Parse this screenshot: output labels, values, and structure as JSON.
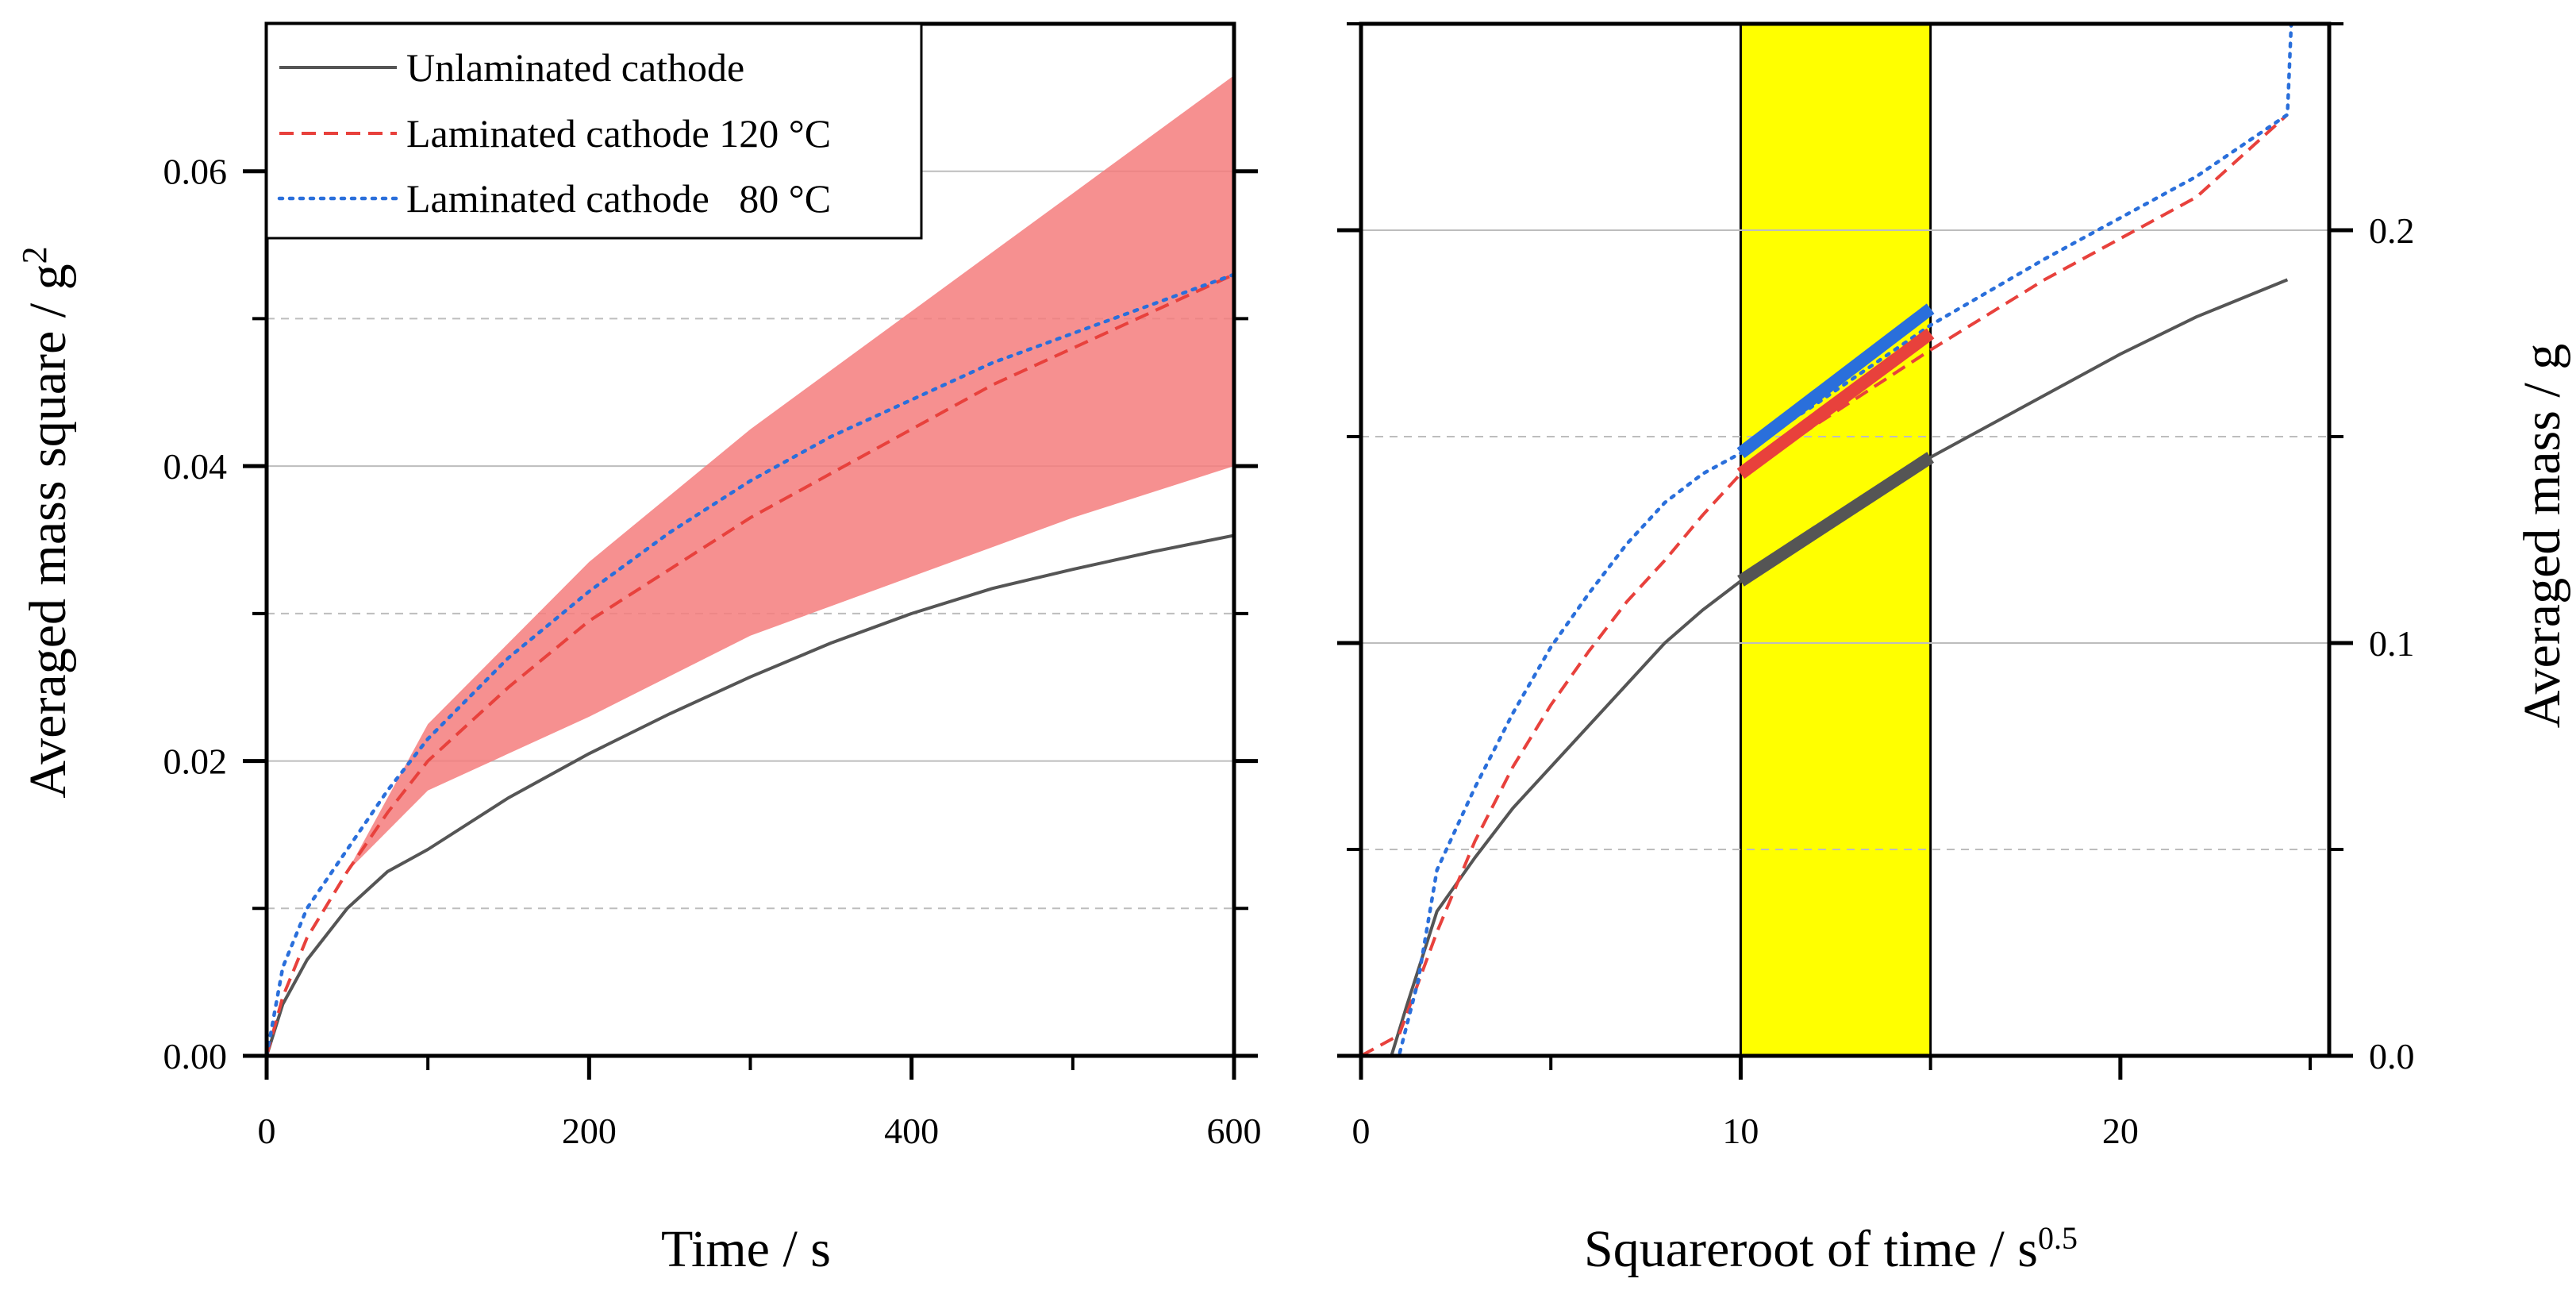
{
  "chart_data": [
    {
      "type": "line",
      "panel": "left",
      "xlabel": "Time / s",
      "ylabel": "Averaged mass square / g",
      "ylabel_superscript": "2",
      "xlim": [
        0,
        600
      ],
      "ylim": [
        0,
        0.07
      ],
      "x_ticks": [
        0,
        200,
        400,
        600
      ],
      "x_tick_labels": [
        "0",
        "200",
        "400",
        "600"
      ],
      "y_ticks": [
        0,
        0.02,
        0.04,
        0.06
      ],
      "y_tick_labels": [
        "0.00",
        "0.02",
        "0.04",
        "0.06"
      ],
      "grid_major_y": [
        0.02,
        0.04,
        0.06
      ],
      "grid_minor_y": [
        0.01,
        0.03,
        0.05
      ],
      "legend": {
        "placement": "top-left",
        "entries": [
          {
            "label": "Unlaminated cathode",
            "color": "#555555",
            "style": "solid"
          },
          {
            "label": "Laminated cathode 120 °C",
            "color": "#e8413c",
            "style": "dashed"
          },
          {
            "label": "Laminated cathode   80 °C",
            "color": "#2a6fdb",
            "style": "dotted"
          }
        ]
      },
      "band": {
        "name": "Laminated cathode 120 °C spread",
        "color": "#f47c7c",
        "x": [
          50,
          100,
          200,
          300,
          400,
          500,
          600
        ],
        "upper": [
          0.0125,
          0.0225,
          0.0335,
          0.0425,
          0.0505,
          0.0585,
          0.0665
        ],
        "lower": [
          0.0125,
          0.018,
          0.023,
          0.0285,
          0.0325,
          0.0365,
          0.04
        ]
      },
      "series": [
        {
          "name": "Unlaminated cathode",
          "color": "#555555",
          "style": "solid",
          "x": [
            0,
            10,
            25,
            50,
            75,
            100,
            150,
            200,
            250,
            300,
            350,
            400,
            450,
            500,
            550,
            600
          ],
          "y": [
            0,
            0.0035,
            0.0065,
            0.01,
            0.0125,
            0.014,
            0.0175,
            0.0205,
            0.0232,
            0.0257,
            0.028,
            0.03,
            0.0317,
            0.033,
            0.0342,
            0.0353
          ]
        },
        {
          "name": "Laminated cathode 120 °C",
          "color": "#e8413c",
          "style": "dashed",
          "x": [
            0,
            10,
            25,
            50,
            75,
            100,
            150,
            200,
            250,
            300,
            350,
            400,
            450,
            500,
            550,
            600
          ],
          "y": [
            0,
            0.004,
            0.008,
            0.0125,
            0.0165,
            0.02,
            0.025,
            0.0295,
            0.033,
            0.0365,
            0.0395,
            0.0425,
            0.0455,
            0.048,
            0.0505,
            0.053
          ]
        },
        {
          "name": "Laminated cathode   80 °C",
          "color": "#2a6fdb",
          "style": "dotted",
          "x": [
            0,
            10,
            25,
            50,
            75,
            100,
            150,
            200,
            250,
            300,
            350,
            400,
            450,
            500,
            550,
            600
          ],
          "y": [
            0,
            0.006,
            0.01,
            0.014,
            0.018,
            0.0215,
            0.027,
            0.0315,
            0.0355,
            0.039,
            0.042,
            0.0445,
            0.047,
            0.049,
            0.051,
            0.053
          ]
        }
      ]
    },
    {
      "type": "line",
      "panel": "right",
      "xlabel": "Squareroot of time / s",
      "xlabel_superscript": "0.5",
      "ylabel": "Averaged mass / g",
      "xlim": [
        0,
        25.5
      ],
      "ylim": [
        0,
        0.25
      ],
      "x_ticks": [
        0,
        10,
        20
      ],
      "x_tick_labels": [
        "0",
        "10",
        "20"
      ],
      "y_ticks": [
        0,
        0.1,
        0.2
      ],
      "y_tick_labels": [
        "0.0",
        "0.1",
        "0.2"
      ],
      "grid_major_y": [
        0.1,
        0.2
      ],
      "grid_minor_y": [
        0.05,
        0.15,
        0.25
      ],
      "highlight_region": {
        "x_start": 10,
        "x_end": 15,
        "color": "#ffff00"
      },
      "series": [
        {
          "name": "Unlaminated cathode",
          "color": "#555555",
          "style": "solid",
          "x": [
            0,
            0.8,
            1.2,
            2,
            3,
            4,
            5,
            6,
            7,
            8,
            9,
            10,
            12,
            15,
            18,
            20,
            22,
            24.4
          ],
          "y": [
            0,
            0,
            0.012,
            0.035,
            0.048,
            0.06,
            0.07,
            0.08,
            0.09,
            0.1,
            0.108,
            0.115,
            0.128,
            0.145,
            0.16,
            0.17,
            0.179,
            0.188
          ]
        },
        {
          "name": "Laminated cathode 120 °C",
          "color": "#e8413c",
          "style": "dashed",
          "x": [
            0,
            1,
            2,
            3,
            4,
            5,
            6,
            7,
            8,
            9,
            10,
            12,
            15,
            18,
            20,
            22,
            24.4
          ],
          "y": [
            0,
            0.005,
            0.03,
            0.052,
            0.07,
            0.085,
            0.098,
            0.11,
            0.12,
            0.131,
            0.141,
            0.153,
            0.171,
            0.188,
            0.198,
            0.208,
            0.228
          ]
        },
        {
          "name": "Laminated cathode   80 °C",
          "color": "#2a6fdb",
          "style": "dotted",
          "x": [
            0,
            1,
            1.5,
            2,
            3,
            4,
            5,
            6,
            7,
            8,
            9,
            10,
            12,
            15,
            18,
            20,
            22,
            24.4,
            24.5
          ],
          "y": [
            0,
            0,
            0.018,
            0.045,
            0.065,
            0.083,
            0.099,
            0.112,
            0.124,
            0.134,
            0.141,
            0.146,
            0.158,
            0.177,
            0.193,
            0.203,
            0.213,
            0.228,
            0.25
          ]
        }
      ],
      "fit_segments": [
        {
          "name": "Laminated cathode   80 °C fit",
          "color": "#2a6fdb",
          "x": [
            10,
            15
          ],
          "y": [
            0.146,
            0.181
          ]
        },
        {
          "name": "Laminated cathode 120 °C fit",
          "color": "#e8413c",
          "x": [
            10,
            15
          ],
          "y": [
            0.141,
            0.175
          ]
        },
        {
          "name": "Unlaminated cathode fit",
          "color": "#555555",
          "x": [
            10,
            15
          ],
          "y": [
            0.115,
            0.145
          ]
        }
      ]
    }
  ]
}
